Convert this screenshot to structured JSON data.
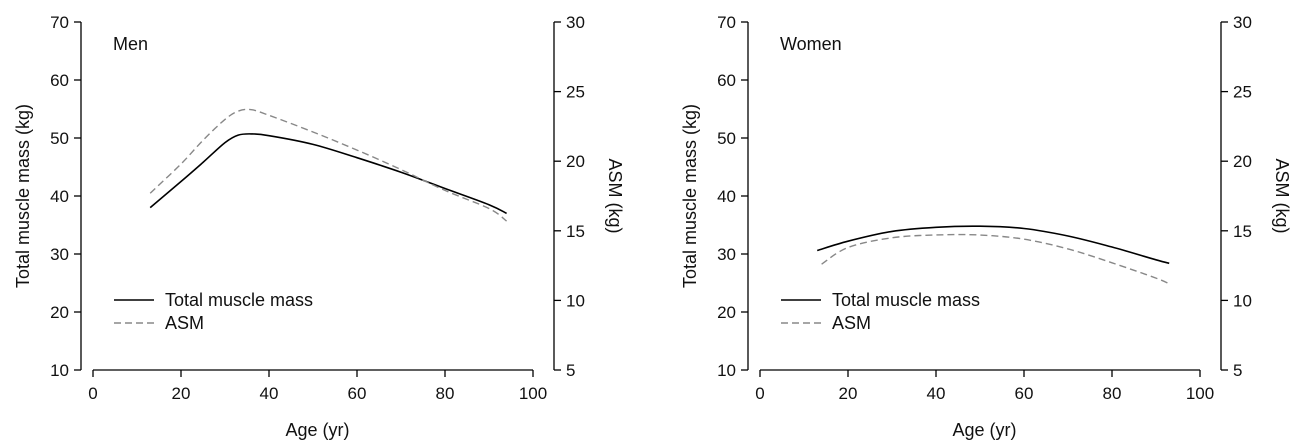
{
  "chart_data": [
    {
      "type": "line",
      "title": "Men",
      "xlabel": "Age (yr)",
      "ylabel": "Total muscle mass (kg)",
      "y2label": "ASM (kg)",
      "xlim": [
        0,
        100
      ],
      "ylim": [
        10,
        70
      ],
      "y2lim": [
        5,
        30
      ],
      "xticks": [
        0,
        20,
        40,
        60,
        80,
        100
      ],
      "yticks": [
        10,
        20,
        30,
        40,
        50,
        60,
        70
      ],
      "y2ticks": [
        5,
        10,
        15,
        20,
        25,
        30
      ],
      "grid": false,
      "legend_position": "bottom-left",
      "series": [
        {
          "name": "Total muscle mass",
          "axis": "left",
          "style": "solid",
          "color": "#000000",
          "x": [
            13,
            20,
            25,
            30,
            33,
            36,
            40,
            50,
            60,
            70,
            80,
            90,
            94
          ],
          "y": [
            38.0,
            42.5,
            45.8,
            49.2,
            50.5,
            50.7,
            50.4,
            48.9,
            46.6,
            44.1,
            41.3,
            38.5,
            37.0
          ]
        },
        {
          "name": "ASM",
          "axis": "right",
          "style": "dashed",
          "color": "#888888",
          "x": [
            13,
            20,
            25,
            30,
            33,
            36,
            40,
            50,
            60,
            70,
            80,
            90,
            94
          ],
          "y": [
            17.7,
            19.8,
            21.5,
            23.0,
            23.6,
            23.7,
            23.3,
            22.1,
            20.8,
            19.4,
            17.9,
            16.6,
            15.7
          ]
        }
      ]
    },
    {
      "type": "line",
      "title": "Women",
      "xlabel": "Age (yr)",
      "ylabel": "Total muscle mass (kg)",
      "y2label": "ASM (kg)",
      "xlim": [
        0,
        100
      ],
      "ylim": [
        10,
        70
      ],
      "y2lim": [
        5,
        30
      ],
      "xticks": [
        0,
        20,
        40,
        60,
        80,
        100
      ],
      "yticks": [
        10,
        20,
        30,
        40,
        50,
        60,
        70
      ],
      "y2ticks": [
        5,
        10,
        15,
        20,
        25,
        30
      ],
      "grid": false,
      "legend_position": "bottom-left",
      "series": [
        {
          "name": "Total muscle mass",
          "axis": "left",
          "style": "solid",
          "color": "#000000",
          "x": [
            13,
            20,
            30,
            40,
            50,
            60,
            70,
            80,
            90,
            93
          ],
          "y": [
            30.6,
            32.2,
            33.9,
            34.6,
            34.8,
            34.4,
            33.1,
            31.2,
            29.0,
            28.4
          ]
        },
        {
          "name": "ASM",
          "axis": "right",
          "style": "dashed",
          "color": "#888888",
          "x": [
            14,
            20,
            30,
            40,
            50,
            60,
            70,
            80,
            90,
            93
          ],
          "y": [
            12.6,
            13.8,
            14.5,
            14.7,
            14.7,
            14.4,
            13.7,
            12.7,
            11.6,
            11.2
          ]
        }
      ]
    }
  ]
}
